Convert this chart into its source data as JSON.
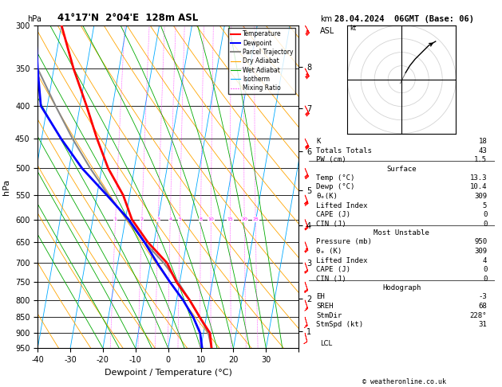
{
  "title_left": "41°17'N  2°04'E  128m ASL",
  "title_right": "28.04.2024  06GMT (Base: 06)",
  "xlabel": "Dewpoint / Temperature (°C)",
  "ylabel_left": "hPa",
  "pressure_levels": [
    300,
    350,
    400,
    450,
    500,
    550,
    600,
    650,
    700,
    750,
    800,
    850,
    900,
    950
  ],
  "xlim": [
    -40,
    40
  ],
  "ylim_log": [
    300,
    950
  ],
  "km_labels": [
    1,
    2,
    3,
    4,
    5,
    6,
    7,
    8
  ],
  "km_pressures": [
    895,
    795,
    701,
    612,
    540,
    470,
    404,
    348
  ],
  "mixing_ratio_values": [
    1,
    2,
    3,
    4,
    5,
    8,
    10,
    15,
    20,
    25
  ],
  "bg_color": "#ffffff",
  "temp_profile_T": [
    13.3,
    12.0,
    8.0,
    4.0,
    -1.0,
    -5.0,
    -12.0,
    -18.0,
    -22.0,
    -28.0,
    -33.0,
    -38.0,
    -44.0,
    -50.0
  ],
  "temp_profile_P": [
    950,
    900,
    850,
    800,
    750,
    700,
    650,
    600,
    550,
    500,
    450,
    400,
    350,
    300
  ],
  "dewp_profile_T": [
    10.4,
    9.0,
    6.0,
    2.0,
    -3.0,
    -8.0,
    -13.0,
    -19.0,
    -27.0,
    -36.0,
    -44.0,
    -52.0,
    -55.0,
    -58.0
  ],
  "dewp_profile_P": [
    950,
    900,
    850,
    800,
    750,
    700,
    650,
    600,
    550,
    500,
    450,
    400,
    350,
    300
  ],
  "parcel_profile_T": [
    13.3,
    11.5,
    8.0,
    4.0,
    -0.5,
    -6.0,
    -13.0,
    -19.5,
    -26.5,
    -33.5,
    -40.5,
    -47.5,
    -55.0,
    -62.0
  ],
  "parcel_profile_P": [
    950,
    900,
    850,
    800,
    750,
    700,
    650,
    600,
    550,
    500,
    450,
    400,
    350,
    300
  ],
  "temp_color": "#ff0000",
  "dewp_color": "#0000ff",
  "parcel_color": "#888888",
  "dry_adiabat_color": "#ffa500",
  "wet_adiabat_color": "#00aa00",
  "isotherm_color": "#00aaff",
  "mixing_ratio_color": "#ff00ff",
  "grid_color": "#000000",
  "info_K": 18,
  "info_TT": 43,
  "info_PW": 1.5,
  "sfc_temp": 13.3,
  "sfc_dewp": 10.4,
  "sfc_theta_e": 309,
  "sfc_li": 5,
  "sfc_cape": 0,
  "sfc_cin": 0,
  "mu_pressure": 950,
  "mu_theta_e": 309,
  "mu_li": 4,
  "mu_cape": 0,
  "mu_cin": 0,
  "hodo_EH": -3,
  "hodo_SREH": 68,
  "hodo_StmDir": 228,
  "hodo_StmSpd": 31,
  "copyright": "© weatheronline.co.uk",
  "wind_pressure": [
    950,
    900,
    850,
    800,
    750,
    700,
    650,
    600,
    550,
    500,
    450,
    400,
    350,
    300
  ],
  "wind_u": [
    -2,
    -3,
    -4,
    -5,
    -6,
    -7,
    -8,
    -9,
    -10,
    -12,
    -14,
    -15,
    -16,
    -18
  ],
  "wind_v": [
    10,
    12,
    14,
    15,
    18,
    20,
    22,
    24,
    26,
    28,
    28,
    28,
    30,
    32
  ]
}
